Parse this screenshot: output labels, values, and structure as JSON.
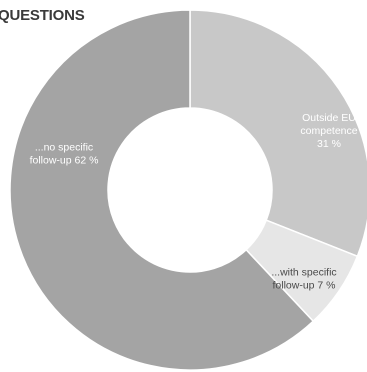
{
  "title": "QUESTIONS",
  "chart_data": {
    "type": "pie",
    "donut": true,
    "title": "QUESTIONS",
    "slices": [
      {
        "label_lines": [
          "Outside EU",
          "competence",
          "31 %"
        ],
        "value": 31,
        "color": "#c8c8c8",
        "text_color": "#ffffff"
      },
      {
        "label_lines": [
          "...with specific",
          "follow-up 7 %"
        ],
        "value": 7,
        "color": "#e6e6e6",
        "text_color": "#4a4a4a"
      },
      {
        "label_lines": [
          "...no specific",
          "follow-up 62 %"
        ],
        "value": 62,
        "color": "#a4a4a4",
        "text_color": "#ffffff"
      }
    ]
  }
}
